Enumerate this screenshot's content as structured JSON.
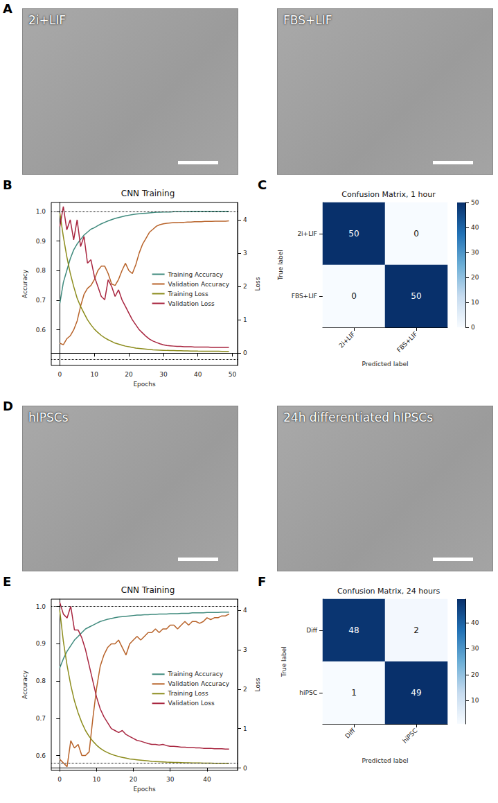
{
  "images": [
    {
      "panel": "A",
      "labels": [
        "2i+LIF",
        "FBS+LIF"
      ]
    },
    {
      "panel": "D",
      "labels": [
        "hIPSCs",
        "24h differentiated hIPSCs"
      ]
    }
  ],
  "chart_data": [
    {
      "panel": "B",
      "type": "line",
      "title": "CNN Training",
      "x_label": "Epochs",
      "y_label": "Accuracy",
      "y2_label": "Loss",
      "x": [
        0,
        1,
        2,
        3,
        4,
        5,
        6,
        7,
        8,
        9,
        10,
        11,
        12,
        13,
        14,
        15,
        16,
        17,
        18,
        19,
        20,
        21,
        22,
        23,
        24,
        25,
        26,
        27,
        28,
        29,
        30,
        31,
        32,
        33,
        34,
        35,
        36,
        37,
        38,
        39,
        40,
        41,
        42,
        43,
        44,
        45,
        46,
        47,
        48,
        49
      ],
      "xlim": [
        -2.5,
        51.5
      ],
      "xticks": [
        0,
        10,
        20,
        30,
        40,
        50
      ],
      "ylim": [
        0.48,
        1.03
      ],
      "yticks": [
        0.6,
        0.7,
        0.8,
        0.9,
        {
          "value": 1,
          "label": "1.0"
        }
      ],
      "y2lim": [
        -0.37,
        4.52
      ],
      "y2ticks": [
        0,
        1,
        2,
        3,
        4
      ],
      "reference_lines": [
        1.0,
        0.5
      ],
      "grid": false,
      "legend": "right",
      "series": [
        {
          "name": "Training Accuracy",
          "color": "#3f8a7d",
          "values": [
            0.69,
            0.76,
            0.8,
            0.84,
            0.87,
            0.89,
            0.905,
            0.92,
            0.93,
            0.94,
            0.945,
            0.952,
            0.958,
            0.963,
            0.968,
            0.972,
            0.976,
            0.979,
            0.982,
            0.985,
            0.987,
            0.989,
            0.991,
            0.992,
            0.993,
            0.994,
            0.995,
            0.996,
            0.997,
            0.997,
            0.998,
            0.998,
            0.998,
            0.999,
            0.999,
            0.999,
            0.999,
            0.999,
            1,
            1,
            1,
            1,
            1,
            1,
            1,
            1,
            1,
            1,
            1,
            1
          ]
        },
        {
          "name": "Validation Accuracy",
          "color": "#b8632a",
          "values": [
            0.555,
            0.55,
            0.57,
            0.58,
            0.6,
            0.63,
            0.68,
            0.72,
            0.74,
            0.75,
            0.77,
            0.8,
            0.815,
            0.815,
            0.79,
            0.755,
            0.75,
            0.77,
            0.8,
            0.825,
            0.8,
            0.79,
            0.82,
            0.86,
            0.89,
            0.91,
            0.93,
            0.94,
            0.95,
            0.955,
            0.958,
            0.96,
            0.961,
            0.962,
            0.962,
            0.963,
            0.963,
            0.964,
            0.964,
            0.965,
            0.965,
            0.965,
            0.966,
            0.966,
            0.966,
            0.967,
            0.967,
            0.967,
            0.967,
            0.968
          ]
        },
        {
          "name": "Training Loss",
          "color": "#8c8c1c",
          "axis": "y2",
          "values": [
            4.2,
            3.5,
            2.9,
            2.4,
            2.0,
            1.65,
            1.4,
            1.2,
            1.0,
            0.85,
            0.72,
            0.62,
            0.53,
            0.46,
            0.4,
            0.35,
            0.3,
            0.27,
            0.24,
            0.21,
            0.19,
            0.17,
            0.15,
            0.14,
            0.13,
            0.12,
            0.11,
            0.1,
            0.095,
            0.09,
            0.085,
            0.08,
            0.078,
            0.075,
            0.072,
            0.07,
            0.068,
            0.066,
            0.064,
            0.062,
            0.06,
            0.059,
            0.058,
            0.057,
            0.056,
            0.055,
            0.054,
            0.053,
            0.052,
            0.051
          ]
        },
        {
          "name": "Validation Loss",
          "color": "#a8253f",
          "axis": "y2",
          "values": [
            3.8,
            4.4,
            3.7,
            4.0,
            3.4,
            4.0,
            3.2,
            3.5,
            2.7,
            2.8,
            2.3,
            2.0,
            1.7,
            1.6,
            2.2,
            2.0,
            1.7,
            1.9,
            1.6,
            1.4,
            1.2,
            1.0,
            0.85,
            0.7,
            0.6,
            0.5,
            0.42,
            0.36,
            0.32,
            0.28,
            0.25,
            0.23,
            0.22,
            0.21,
            0.2,
            0.2,
            0.19,
            0.19,
            0.19,
            0.18,
            0.18,
            0.18,
            0.18,
            0.18,
            0.17,
            0.17,
            0.17,
            0.17,
            0.17,
            0.17
          ]
        }
      ]
    },
    {
      "panel": "C",
      "type": "heatmap",
      "title": "Confusion Matrix, 1 hour",
      "x_label": "Predicted label",
      "y_label": "True label",
      "x_categories": [
        "2i+LIF",
        "FBS+LIF"
      ],
      "y_categories": [
        "2i+LIF",
        "FBS+LIF"
      ],
      "cells": [
        [
          50,
          0
        ],
        [
          0,
          50
        ]
      ],
      "colorbar_range": [
        0,
        50
      ],
      "colorbar_ticks": [
        0,
        10,
        20,
        30,
        40,
        50
      ],
      "data_labels": true
    },
    {
      "panel": "E",
      "type": "line",
      "title": "CNN Training",
      "x_label": "Epochs",
      "y_label": "Accuracy",
      "y2_label": "Loss",
      "x": [
        0,
        1,
        2,
        3,
        4,
        5,
        6,
        7,
        8,
        9,
        10,
        11,
        12,
        13,
        14,
        15,
        16,
        17,
        18,
        19,
        20,
        21,
        22,
        23,
        24,
        25,
        26,
        27,
        28,
        29,
        30,
        31,
        32,
        33,
        34,
        35,
        36,
        37,
        38,
        39,
        40,
        41,
        42,
        43,
        44,
        45,
        46
      ],
      "xlim": [
        -2.3,
        48.3
      ],
      "xticks": [
        0,
        10,
        20,
        30,
        40
      ],
      "ylim": [
        0.56,
        1.02
      ],
      "yticks": [
        0.6,
        0.7,
        0.8,
        0.9,
        {
          "value": 1,
          "label": "1.0"
        }
      ],
      "y2lim": [
        -0.06,
        4.28
      ],
      "y2ticks": [
        0,
        1,
        2,
        3,
        4
      ],
      "reference_lines": [
        1.0,
        0.585
      ],
      "grid": false,
      "legend": "right",
      "series": [
        {
          "name": "Training Accuracy",
          "color": "#3f8a7d",
          "values": [
            0.835,
            0.86,
            0.88,
            0.895,
            0.91,
            0.92,
            0.93,
            0.94,
            0.945,
            0.95,
            0.955,
            0.96,
            0.963,
            0.966,
            0.968,
            0.97,
            0.972,
            0.973,
            0.974,
            0.975,
            0.976,
            0.977,
            0.977,
            0.978,
            0.978,
            0.979,
            0.979,
            0.98,
            0.98,
            0.98,
            0.981,
            0.981,
            0.981,
            0.982,
            0.982,
            0.982,
            0.983,
            0.983,
            0.983,
            0.983,
            0.984,
            0.984,
            0.984,
            0.984,
            0.985,
            0.985,
            0.985
          ]
        },
        {
          "name": "Validation Accuracy",
          "color": "#b8632a",
          "values": [
            0.59,
            0.58,
            0.57,
            0.64,
            0.62,
            0.63,
            0.6,
            0.6,
            0.61,
            0.7,
            0.78,
            0.84,
            0.87,
            0.89,
            0.9,
            0.9,
            0.91,
            0.89,
            0.87,
            0.9,
            0.91,
            0.92,
            0.91,
            0.92,
            0.93,
            0.93,
            0.94,
            0.93,
            0.94,
            0.94,
            0.95,
            0.95,
            0.94,
            0.95,
            0.96,
            0.95,
            0.96,
            0.96,
            0.955,
            0.96,
            0.97,
            0.965,
            0.97,
            0.97,
            0.975,
            0.975,
            0.98
          ]
        },
        {
          "name": "Training Loss",
          "color": "#8c8c1c",
          "axis": "y2",
          "values": [
            4.0,
            3.2,
            2.6,
            2.1,
            1.7,
            1.4,
            1.15,
            0.95,
            0.8,
            0.68,
            0.58,
            0.5,
            0.44,
            0.39,
            0.35,
            0.32,
            0.29,
            0.27,
            0.25,
            0.23,
            0.22,
            0.21,
            0.2,
            0.19,
            0.18,
            0.17,
            0.165,
            0.16,
            0.155,
            0.15,
            0.147,
            0.144,
            0.141,
            0.138,
            0.135,
            0.133,
            0.131,
            0.129,
            0.127,
            0.125,
            0.124,
            0.123,
            0.122,
            0.121,
            0.12,
            0.12,
            0.12
          ]
        },
        {
          "name": "Validation Loss",
          "color": "#a8253f",
          "axis": "y2",
          "values": [
            4.2,
            3.9,
            3.8,
            4.1,
            3.5,
            3.5,
            3.3,
            3.0,
            2.6,
            2.2,
            1.8,
            1.5,
            1.3,
            1.15,
            1.0,
            0.95,
            0.9,
            0.95,
            0.85,
            0.8,
            0.75,
            0.7,
            0.68,
            0.65,
            0.62,
            0.6,
            0.6,
            0.58,
            0.6,
            0.57,
            0.55,
            0.55,
            0.54,
            0.53,
            0.53,
            0.52,
            0.52,
            0.51,
            0.51,
            0.5,
            0.5,
            0.5,
            0.49,
            0.49,
            0.49,
            0.48,
            0.48
          ]
        }
      ]
    },
    {
      "panel": "F",
      "type": "heatmap",
      "title": "Confusion Matrix, 24 hours",
      "x_label": "Predicted label",
      "y_label": "True label",
      "x_categories": [
        "Diff",
        "hiPSC"
      ],
      "y_categories": [
        "Diff",
        "hiPSC"
      ],
      "cells": [
        [
          48,
          2
        ],
        [
          1,
          49
        ]
      ],
      "colorbar_range": [
        1,
        49
      ],
      "colorbar_ticks": [
        10,
        20,
        30,
        40
      ],
      "data_labels": true
    }
  ]
}
